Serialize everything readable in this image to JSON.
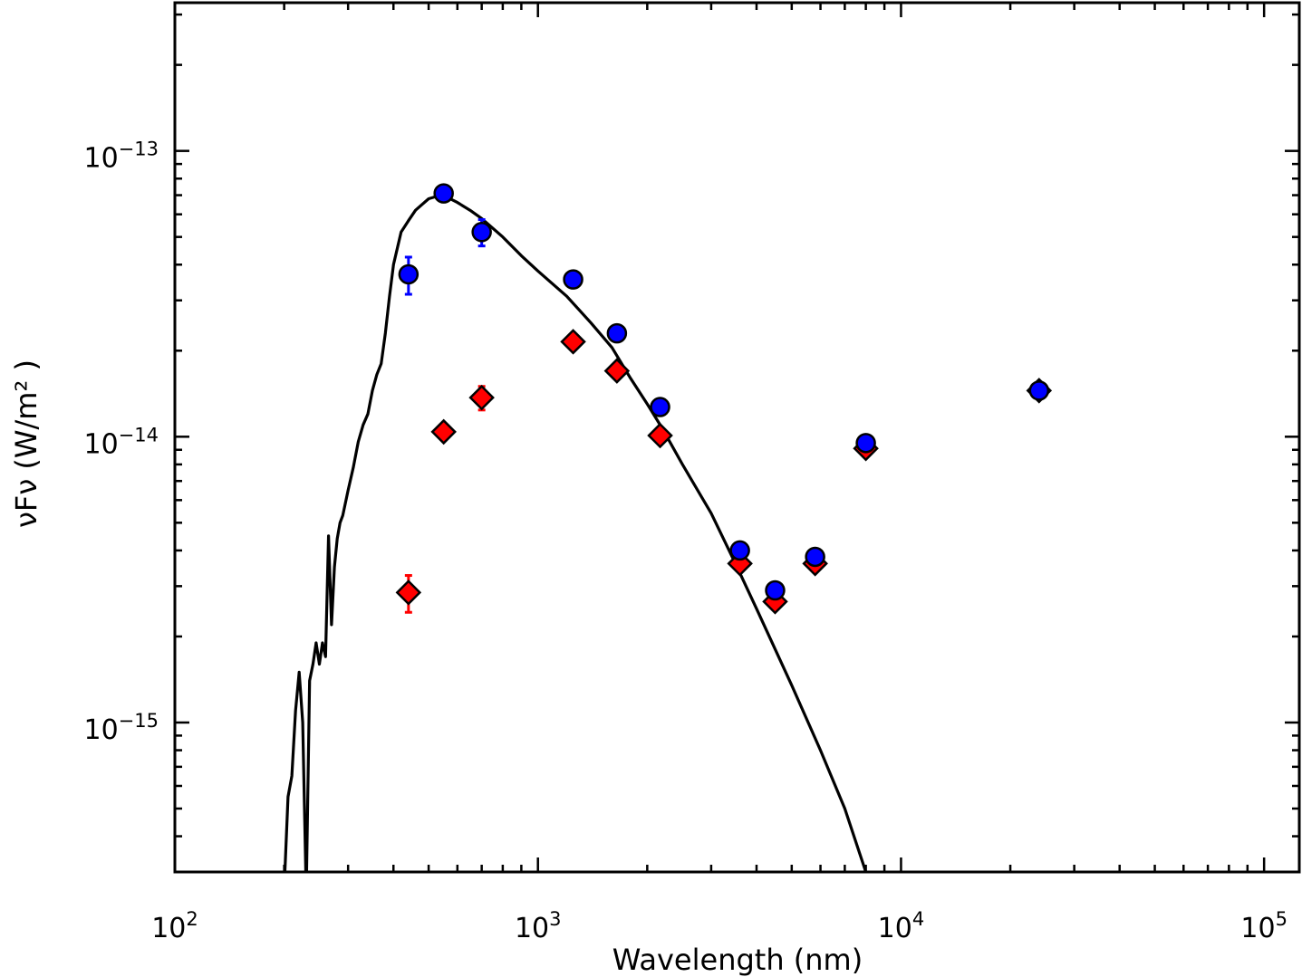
{
  "chart_data": {
    "type": "scatter",
    "xlabel": "Wavelength (nm)",
    "ylabel": "νFν (W/m² )",
    "xscale": "log",
    "yscale": "log",
    "xlim": [
      100,
      125000
    ],
    "ylim": [
      3e-16,
      3.3e-13
    ],
    "x_ticks": [
      {
        "base": "10",
        "exp": "2"
      },
      {
        "base": "10",
        "exp": "3"
      },
      {
        "base": "10",
        "exp": "4"
      },
      {
        "base": "10",
        "exp": "5"
      }
    ],
    "y_ticks": [
      {
        "base": "10",
        "exp": "−15",
        "value": 1e-15
      },
      {
        "base": "10",
        "exp": "−14",
        "value": 1e-14
      },
      {
        "base": "10",
        "exp": "−13",
        "value": 1e-13
      }
    ],
    "grid": false,
    "legend": "none",
    "colors": {
      "model": "#000000",
      "blue_points": "#0000ff",
      "red_points": "#ff0000",
      "marker_edge": "#000000"
    },
    "series": [
      {
        "kind": "line",
        "x": [
          200,
          205,
          210,
          215,
          220,
          225,
          230,
          235,
          240,
          245,
          250,
          255,
          260,
          265,
          270,
          275,
          280,
          285,
          290,
          300,
          310,
          320,
          330,
          340,
          350,
          360,
          370,
          380,
          390,
          400,
          420,
          440,
          460,
          480,
          500,
          530,
          560,
          600,
          650,
          700,
          800,
          900,
          1000,
          1200,
          1400,
          1600,
          1800,
          2000,
          2200,
          2500,
          3000,
          3500,
          4000,
          5000,
          6000,
          7000,
          8000
        ],
        "y": [
          2.6e-16,
          5.5e-16,
          6.5e-16,
          1.1e-15,
          1.5e-15,
          1e-15,
          2.5e-16,
          1.4e-15,
          1.6e-15,
          1.9e-15,
          1.6e-15,
          1.9e-15,
          1.7e-15,
          4.5e-15,
          2.2e-15,
          3.5e-15,
          4.4e-15,
          5e-15,
          5.3e-15,
          6.5e-15,
          7.8e-15,
          9.6e-15,
          1.1e-14,
          1.2e-14,
          1.45e-14,
          1.65e-14,
          1.8e-14,
          2.3e-14,
          3.1e-14,
          4e-14,
          5.2e-14,
          5.7e-14,
          6.2e-14,
          6.5e-14,
          6.8e-14,
          6.95e-14,
          6.9e-14,
          6.6e-14,
          6.2e-14,
          5.8e-14,
          5e-14,
          4.3e-14,
          3.8e-14,
          3.1e-14,
          2.5e-14,
          2.05e-14,
          1.6e-14,
          1.3e-14,
          1.07e-14,
          8e-15,
          5.4e-15,
          3.6e-15,
          2.5e-15,
          1.35e-15,
          8e-16,
          5e-16,
          3e-16
        ]
      },
      {
        "kind": "scatter",
        "marker": "diamond",
        "x": [
          440,
          550,
          700,
          1250,
          1650,
          2170,
          3600,
          4500,
          5800,
          8000,
          24000
        ],
        "y": [
          2.85e-15,
          1.04e-14,
          1.37e-14,
          2.15e-14,
          1.7e-14,
          1.01e-14,
          3.6e-15,
          2.65e-15,
          3.6e-15,
          9.1e-15,
          1.45e-14
        ],
        "yerr": [
          4.2e-16,
          0,
          1.3e-15,
          0,
          0,
          0,
          0,
          0,
          0,
          0,
          0
        ]
      },
      {
        "kind": "scatter",
        "marker": "circle",
        "x": [
          440,
          550,
          700,
          1250,
          1650,
          2170,
          3600,
          4500,
          5800,
          8000,
          24000
        ],
        "y": [
          3.7e-14,
          7.1e-14,
          5.2e-14,
          3.55e-14,
          2.3e-14,
          1.27e-14,
          4e-15,
          2.9e-15,
          3.8e-15,
          9.5e-15,
          1.45e-14
        ],
        "yerr": [
          5.5e-15,
          0,
          5.5e-15,
          0,
          0,
          0,
          0,
          0,
          0,
          0,
          0
        ]
      }
    ]
  }
}
